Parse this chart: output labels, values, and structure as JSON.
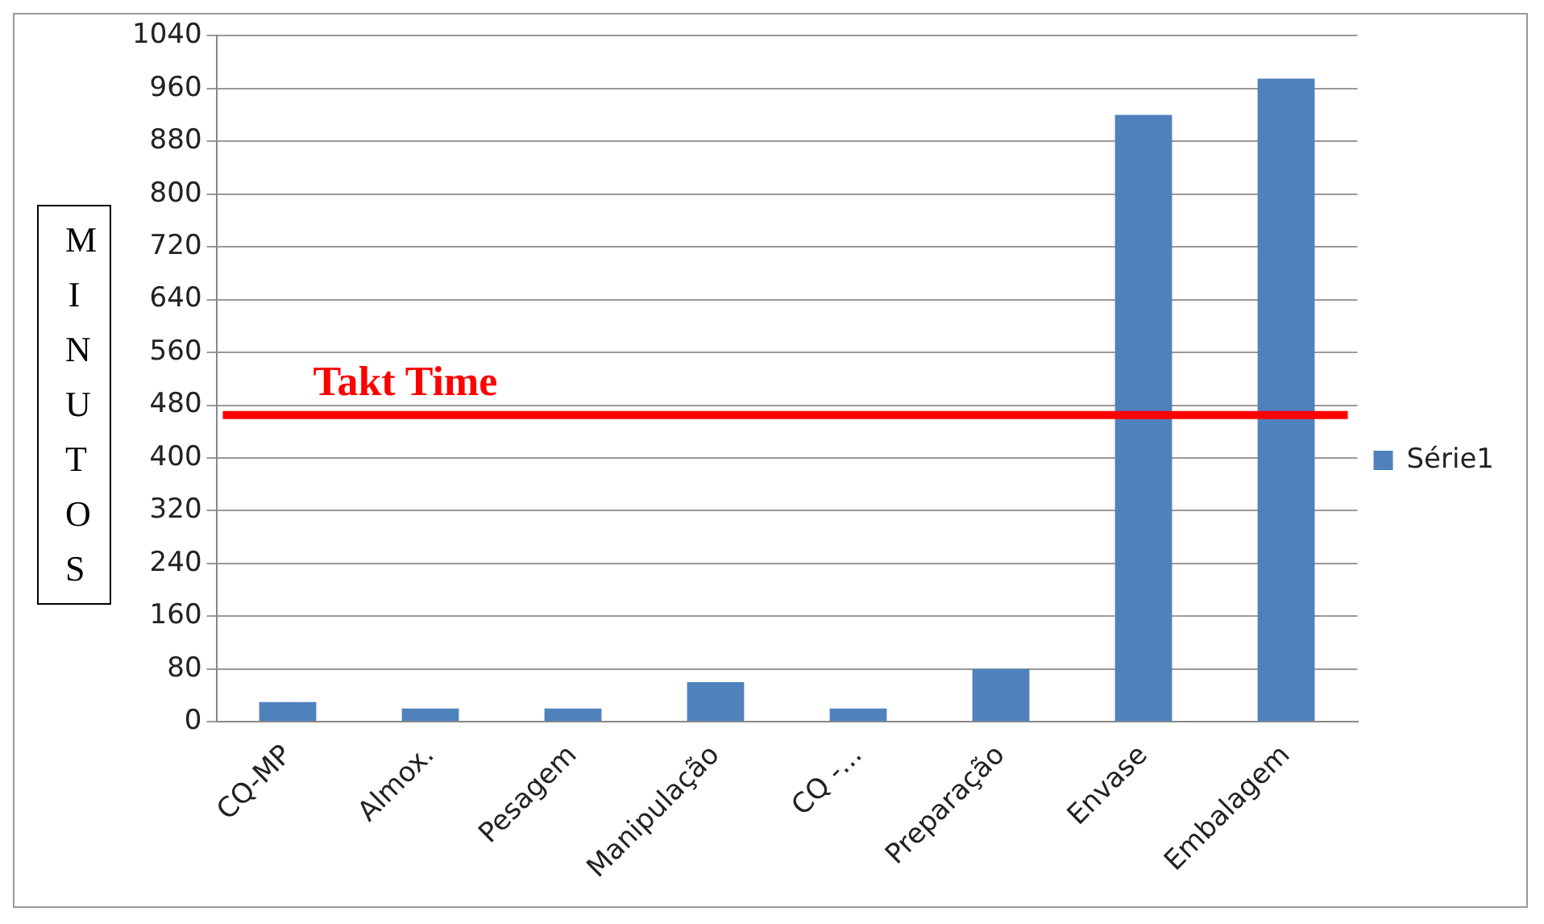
{
  "chart_data": {
    "type": "bar",
    "ylabel": "MINUTOS",
    "categories": [
      "CQ-MP",
      "Almox.",
      "Pesagem",
      "Manipulação",
      "CQ -...",
      "Preparação",
      "Envase",
      "Embalagem"
    ],
    "series": [
      {
        "name": "Série1",
        "color": "#4f81bd",
        "values": [
          30,
          20,
          20,
          60,
          20,
          80,
          920,
          975
        ]
      }
    ],
    "ylim": [
      0,
      1040
    ],
    "yticks": [
      0,
      80,
      160,
      240,
      320,
      400,
      480,
      560,
      640,
      720,
      800,
      880,
      960,
      1040
    ],
    "grid": "y",
    "legend": "right",
    "ref_lines": [
      {
        "axis": "y",
        "value": 465,
        "label": "Takt Time",
        "color": "#ff0000"
      }
    ]
  }
}
